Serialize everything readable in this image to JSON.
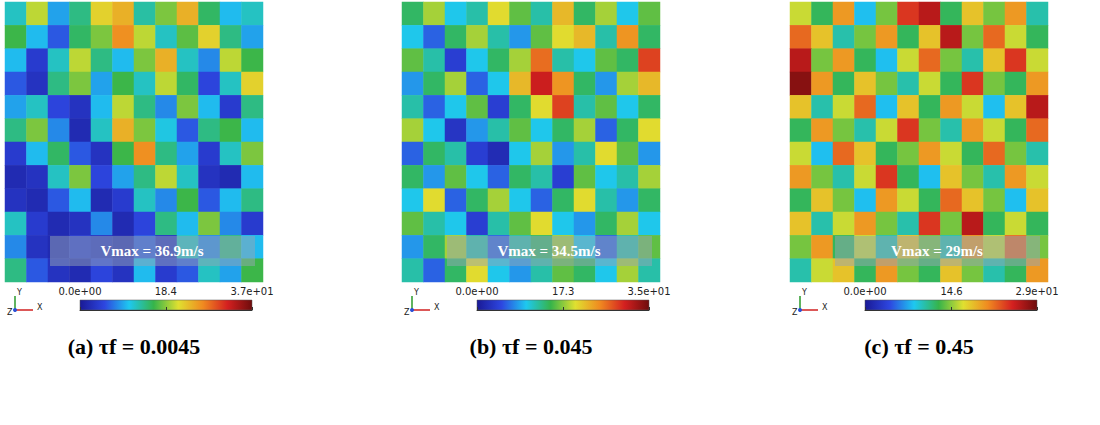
{
  "chart_data": [
    {
      "type": "heatmap",
      "title": "(a) τf = 0.0045",
      "annotation": "Vmax = 36.9m/s",
      "tick_labels": false,
      "axes_triad": [
        "Y",
        "Z",
        "X"
      ],
      "colorbar": {
        "range": [
          0,
          36.9
        ],
        "ticks": [
          {
            "value": 0,
            "label": "0.0e+00"
          },
          18.4,
          {
            "value": 36.9,
            "label": "3.7e+01"
          }
        ]
      },
      "cells": [
        [
          12,
          20,
          9,
          14,
          22,
          24,
          13,
          18,
          24,
          15,
          10,
          12
        ],
        [
          16,
          10,
          6,
          15,
          18,
          26,
          20,
          12,
          17,
          22,
          14,
          9
        ],
        [
          10,
          4,
          12,
          20,
          14,
          10,
          18,
          24,
          12,
          8,
          20,
          16
        ],
        [
          6,
          3,
          14,
          18,
          9,
          16,
          12,
          20,
          15,
          5,
          12,
          22
        ],
        [
          9,
          12,
          5,
          3,
          10,
          20,
          14,
          8,
          18,
          10,
          4,
          14
        ],
        [
          14,
          18,
          8,
          2,
          12,
          24,
          18,
          11,
          6,
          14,
          16,
          10
        ],
        [
          4,
          10,
          15,
          6,
          3,
          16,
          26,
          14,
          9,
          4,
          12,
          18
        ],
        [
          2,
          3,
          12,
          18,
          5,
          9,
          14,
          20,
          12,
          3,
          2,
          10
        ],
        [
          3,
          2,
          6,
          10,
          2,
          4,
          12,
          8,
          16,
          6,
          10,
          14
        ],
        [
          12,
          4,
          2,
          3,
          8,
          2,
          5,
          14,
          10,
          18,
          8,
          4
        ],
        [
          8,
          3,
          2,
          4,
          3,
          2,
          6,
          3,
          12,
          8,
          14,
          10
        ],
        [
          14,
          6,
          3,
          2,
          5,
          3,
          10,
          4,
          6,
          12,
          9,
          16
        ]
      ]
    },
    {
      "type": "heatmap",
      "title": "(b) τf = 0.045",
      "annotation": "Vmax = 34.5m/s",
      "tick_labels": false,
      "axes_triad": [
        "Y",
        "Z",
        "X"
      ],
      "colorbar": {
        "range": [
          0,
          34.5
        ],
        "ticks": [
          {
            "value": 0,
            "label": "0.0e+00"
          },
          17.3,
          {
            "value": 34.5,
            "label": "3.5e+01"
          }
        ]
      },
      "cells": [
        [
          14,
          18,
          10,
          12,
          20,
          16,
          12,
          22,
          14,
          18,
          10,
          16
        ],
        [
          10,
          6,
          14,
          18,
          12,
          8,
          16,
          20,
          22,
          12,
          24,
          14
        ],
        [
          16,
          12,
          4,
          10,
          14,
          18,
          26,
          12,
          10,
          16,
          14,
          28
        ],
        [
          8,
          14,
          18,
          6,
          10,
          22,
          30,
          24,
          14,
          8,
          18,
          22
        ],
        [
          12,
          6,
          10,
          16,
          4,
          14,
          20,
          28,
          12,
          16,
          10,
          14
        ],
        [
          18,
          10,
          3,
          8,
          12,
          16,
          10,
          14,
          18,
          6,
          14,
          20
        ],
        [
          6,
          14,
          12,
          4,
          2,
          10,
          18,
          8,
          12,
          20,
          16,
          8
        ],
        [
          14,
          8,
          16,
          10,
          6,
          14,
          12,
          4,
          16,
          10,
          12,
          18
        ],
        [
          10,
          20,
          6,
          14,
          18,
          10,
          6,
          14,
          20,
          12,
          8,
          14
        ],
        [
          16,
          12,
          10,
          4,
          12,
          16,
          20,
          10,
          8,
          14,
          18,
          10
        ],
        [
          8,
          14,
          18,
          12,
          6,
          12,
          14,
          18,
          10,
          6,
          12,
          16
        ],
        [
          12,
          6,
          14,
          20,
          10,
          8,
          12,
          16,
          14,
          10,
          18,
          12
        ]
      ]
    },
    {
      "type": "heatmap",
      "title": "(c) τf = 0.45",
      "annotation": "Vmax = 29m/s",
      "tick_labels": false,
      "axes_triad": [
        "Y",
        "Z",
        "X"
      ],
      "colorbar": {
        "range": [
          0,
          29
        ],
        "ticks": [
          {
            "value": 0,
            "label": "0.0e+00"
          },
          14.6,
          {
            "value": 29,
            "label": "2.9e+01"
          }
        ]
      },
      "cells": [
        [
          16,
          12,
          20,
          8,
          14,
          24,
          26,
          12,
          18,
          14,
          20,
          10
        ],
        [
          22,
          18,
          10,
          14,
          20,
          12,
          18,
          26,
          14,
          22,
          16,
          12
        ],
        [
          26,
          14,
          20,
          12,
          8,
          16,
          22,
          14,
          10,
          18,
          24,
          16
        ],
        [
          28,
          20,
          12,
          18,
          14,
          10,
          16,
          12,
          24,
          14,
          12,
          20
        ],
        [
          18,
          10,
          16,
          22,
          8,
          18,
          12,
          20,
          16,
          8,
          18,
          26
        ],
        [
          12,
          20,
          14,
          10,
          16,
          24,
          14,
          10,
          20,
          16,
          12,
          22
        ],
        [
          16,
          8,
          22,
          18,
          12,
          14,
          20,
          16,
          12,
          22,
          14,
          10
        ],
        [
          20,
          14,
          10,
          16,
          24,
          12,
          8,
          18,
          14,
          10,
          20,
          16
        ],
        [
          12,
          18,
          14,
          8,
          20,
          16,
          12,
          22,
          18,
          14,
          8,
          18
        ],
        [
          18,
          10,
          16,
          20,
          14,
          10,
          24,
          14,
          26,
          12,
          16,
          12
        ],
        [
          14,
          20,
          12,
          16,
          10,
          18,
          14,
          10,
          20,
          16,
          22,
          14
        ],
        [
          10,
          16,
          18,
          12,
          20,
          14,
          12,
          18,
          14,
          10,
          12,
          20
        ]
      ]
    }
  ]
}
